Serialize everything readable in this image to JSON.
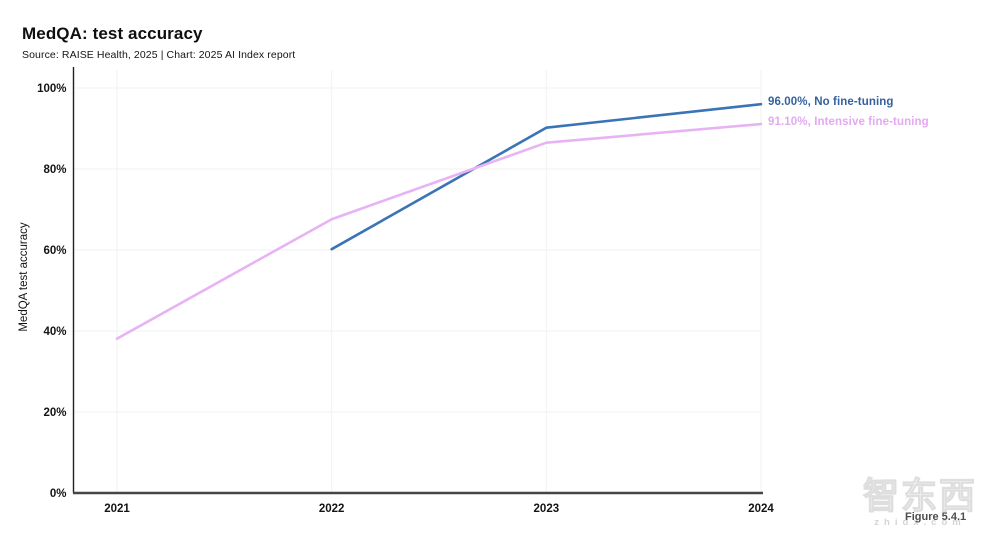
{
  "header": {
    "title": "MedQA: test accuracy",
    "subtitle": "Source: RAISE Health, 2025 | Chart: 2025 AI Index report"
  },
  "chart_data": {
    "type": "line",
    "title": "MedQA: test accuracy",
    "xlabel": "",
    "ylabel": "MedQA test accuracy",
    "x_ticks": [
      "2021",
      "2022",
      "2023",
      "2024"
    ],
    "y_ticks": [
      "0%",
      "20%",
      "40%",
      "60%",
      "80%",
      "100%"
    ],
    "xlim": [
      2021,
      2024
    ],
    "ylim": [
      0,
      100
    ],
    "grid": true,
    "legend_position": "end-of-line-labels-right",
    "series": [
      {
        "name": "No fine-tuning",
        "end_label": "96.00%, No fine-tuning",
        "color": "#3B74B6",
        "label_color": "#35629E",
        "x": [
          2022,
          2023,
          2024
        ],
        "values": [
          60.2,
          90.2,
          96.0
        ]
      },
      {
        "name": "Intensive fine-tuning",
        "end_label": "91.10%, Intensive fine-tuning",
        "color": "#E8B3F5",
        "label_color": "#E3A9F2",
        "x": [
          2021,
          2022,
          2023,
          2024
        ],
        "values": [
          38.1,
          67.6,
          86.5,
          91.1
        ]
      }
    ],
    "colors": {
      "grid": "#F2F2F2",
      "y_axis": "#1F1F1F",
      "x_axis": "#454545",
      "tick_text": "#141414"
    }
  },
  "watermark": {
    "logo_text": "智东西",
    "domain_text": "zhidx.com",
    "figure_label": "Figure 5.4.1"
  }
}
